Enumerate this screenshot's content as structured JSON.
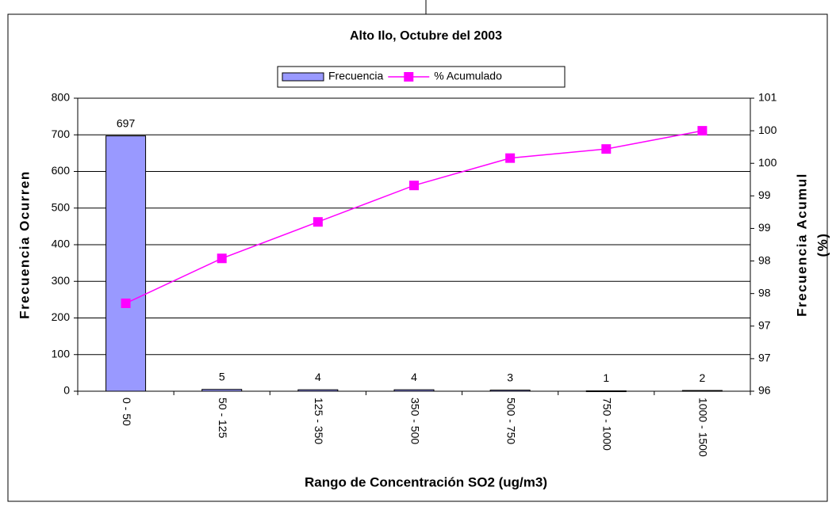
{
  "chart_data": {
    "type": "bar",
    "title": "Alto Ilo, Octubre del 2003",
    "x_label": "Rango de Concentración SO2 (ug/m3)",
    "y_label": "Frecuencia Ocurren",
    "y2_label": [
      "Frecuencia Acumul",
      "(%)"
    ],
    "categories": [
      "0 - 50",
      "50 - 125",
      "125 - 350",
      "350 - 500",
      "500 - 750",
      "750 - 1000",
      "1000 - 1500"
    ],
    "series": [
      {
        "name": "Frecuencia",
        "type": "bar",
        "color": "#9999ff",
        "values": [
          697,
          5,
          4,
          4,
          3,
          1,
          2
        ]
      },
      {
        "name": "% Acumulado",
        "type": "line",
        "axis": "y2",
        "color": "#ff00ff",
        "values": [
          97.35,
          98.04,
          98.6,
          99.16,
          99.58,
          99.72,
          100
        ]
      }
    ],
    "ylim": [
      0,
      800
    ],
    "yticks": [
      0,
      100,
      200,
      300,
      400,
      500,
      600,
      700,
      800
    ],
    "y2lim": [
      96,
      100.5
    ],
    "y2ticks": [
      96,
      {
        "value": 96.5,
        "label": "97"
      },
      97,
      {
        "value": 97.5,
        "label": "98"
      },
      98,
      {
        "value": 98.5,
        "label": "99"
      },
      99,
      {
        "value": 99.5,
        "label": "100"
      },
      100,
      {
        "value": 100.5,
        "label": "101"
      }
    ],
    "grid": true,
    "legend": "top"
  }
}
